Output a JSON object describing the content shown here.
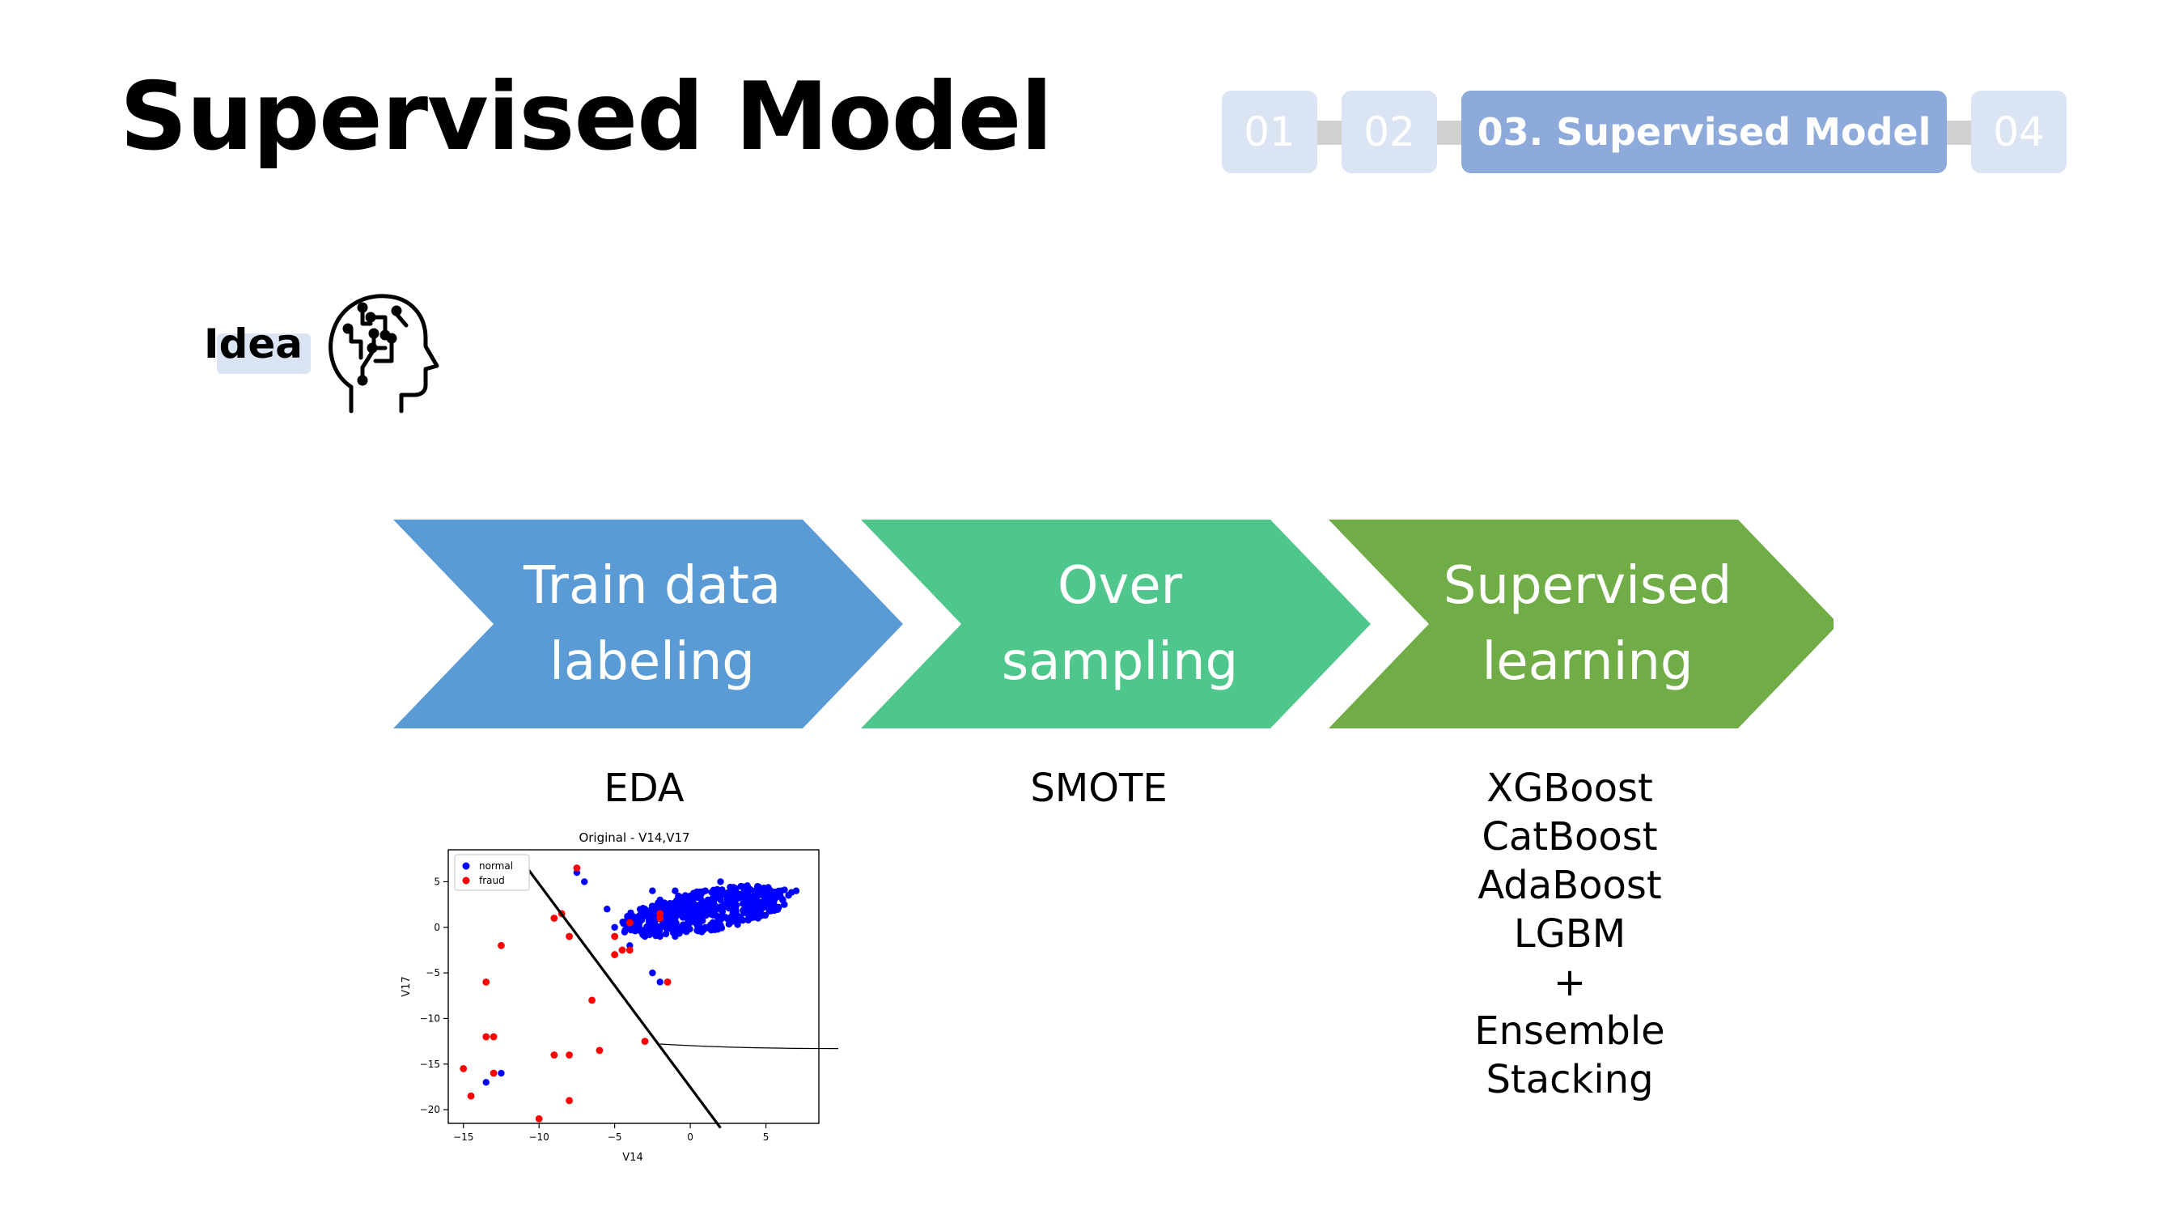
{
  "slide": {
    "title": "Supervised Model"
  },
  "nav": {
    "steps": [
      {
        "label": "01"
      },
      {
        "label": "02"
      },
      {
        "label": "03. Supervised Model"
      },
      {
        "label": "04"
      }
    ]
  },
  "idea": {
    "label": "Idea",
    "icon": "brain-head-icon"
  },
  "flow": {
    "colors": [
      "#5b9bd5",
      "#4fc68c",
      "#70ad47"
    ],
    "steps": [
      {
        "line1": "Train data",
        "line2": "labeling",
        "sub": "EDA"
      },
      {
        "line1": "Over",
        "line2": "sampling",
        "sub": "SMOTE"
      },
      {
        "line1": "Supervised",
        "line2": "learning",
        "sub_lines": [
          "XGBoost",
          "CatBoost",
          "AdaBoost",
          "LGBM",
          "+",
          "Ensemble",
          "Stacking"
        ]
      }
    ]
  },
  "chart_data": {
    "type": "scatter",
    "title": "Original - V14,V17",
    "xlabel": "V14",
    "ylabel": "V17",
    "xlim": [
      -16,
      8.5
    ],
    "ylim": [
      -21.5,
      8.5
    ],
    "xticks": [
      "−15",
      "−10",
      "−5",
      "0",
      "5"
    ],
    "yticks": [
      "5",
      "0",
      "−5",
      "−10",
      "−15",
      "−20"
    ],
    "legend": {
      "position": "top-left",
      "entries": [
        "normal",
        "fraud"
      ]
    },
    "colors": {
      "normal": "#0000ff",
      "fraud": "#ff0000"
    },
    "series": [
      {
        "name": "normal",
        "values": [
          [
            -5.5,
            2
          ],
          [
            -5,
            0
          ],
          [
            -4,
            1
          ],
          [
            -4,
            -2
          ],
          [
            -3,
            2
          ],
          [
            -3,
            -1
          ],
          [
            -2,
            3
          ],
          [
            -2,
            0
          ],
          [
            -2,
            -1
          ],
          [
            -1,
            4
          ],
          [
            -1,
            1
          ],
          [
            -1,
            -1
          ],
          [
            0,
            3
          ],
          [
            0,
            1
          ],
          [
            0,
            2
          ],
          [
            1,
            4
          ],
          [
            1,
            2
          ],
          [
            1,
            0
          ],
          [
            2,
            3
          ],
          [
            2,
            1
          ],
          [
            2,
            5
          ],
          [
            3,
            3
          ],
          [
            3,
            2
          ],
          [
            4,
            3
          ],
          [
            5,
            4
          ],
          [
            6,
            4
          ],
          [
            7,
            4
          ],
          [
            -2.5,
            4
          ],
          [
            -7,
            5
          ],
          [
            -7.5,
            6
          ],
          [
            -13.5,
            -17
          ],
          [
            -12.5,
            -16
          ],
          [
            -2.5,
            -5
          ],
          [
            -2,
            -6
          ]
        ]
      },
      {
        "name": "fraud",
        "values": [
          [
            -7.5,
            6.5
          ],
          [
            -8.5,
            1.5
          ],
          [
            -9,
            1
          ],
          [
            -8,
            -1
          ],
          [
            -12.5,
            -2
          ],
          [
            -13.5,
            -6
          ],
          [
            -13,
            -12
          ],
          [
            -13.5,
            -12
          ],
          [
            -15,
            -15.5
          ],
          [
            -13,
            -16
          ],
          [
            -14.5,
            -18.5
          ],
          [
            -10,
            -21
          ],
          [
            -9,
            -14
          ],
          [
            -8,
            -14
          ],
          [
            -6,
            -13.5
          ],
          [
            -8,
            -19
          ],
          [
            -6.5,
            -8
          ],
          [
            -5,
            -1
          ],
          [
            -5,
            -3
          ],
          [
            -4.5,
            -2.5
          ],
          [
            -4,
            -2.5
          ],
          [
            -4,
            0.5
          ],
          [
            -3,
            -12.5
          ],
          [
            -2,
            1
          ],
          [
            -1.5,
            -6
          ],
          [
            -2,
            1.5
          ]
        ]
      }
    ],
    "annotations": [
      {
        "type": "line",
        "points": [
          [
            -11,
            7
          ],
          [
            2,
            -22
          ]
        ]
      },
      {
        "type": "curve",
        "points": [
          [
            -2,
            -12.8
          ],
          [
            3,
            -13.3
          ],
          [
            10,
            -13.3
          ]
        ]
      }
    ]
  }
}
